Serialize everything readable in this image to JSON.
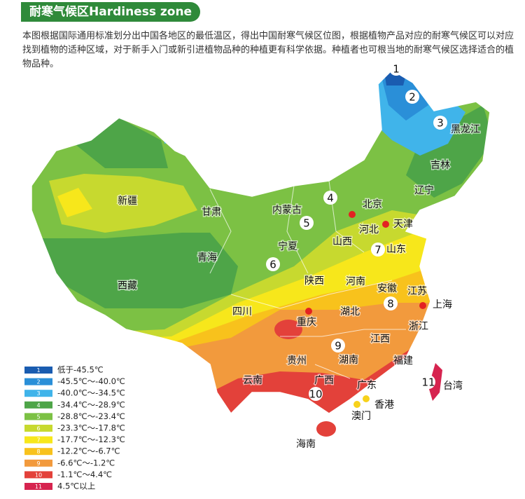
{
  "header": {
    "title": "耐寒气候区Hardiness zone"
  },
  "description": "本图根据国际通用标准划分出中国各地区的最低温区，得出中国耐寒气候区位图，根据植物产品对应的耐寒气候区可以对应找到植物的适种区域，对于新手入门或新引进植物品种的种植更有科学依据。种植者也可根当地的耐寒气候区选择适合的植物品种。",
  "legend": [
    {
      "label": "1",
      "text": "低于-45.5℃",
      "color": "#1a5cb0"
    },
    {
      "label": "2",
      "text": "-45.5℃～-40.0℃",
      "color": "#2a8fd8"
    },
    {
      "label": "3",
      "text": "-40.0℃～-34.5℃",
      "color": "#40b4ea"
    },
    {
      "label": "4",
      "text": "-34.4℃～-28.9℃",
      "color": "#4ea548"
    },
    {
      "label": "5",
      "text": "-28.8℃～-23.4℃",
      "color": "#7cc144"
    },
    {
      "label": "6",
      "text": "-23.3℃～-17.8℃",
      "color": "#c7d92f"
    },
    {
      "label": "7",
      "text": "-17.7℃～-12.3℃",
      "color": "#f7e71b"
    },
    {
      "label": "8",
      "text": "-12.2℃～-6.7℃",
      "color": "#f8c21c"
    },
    {
      "label": "9",
      "text": "-6.6℃～-1.2℃",
      "color": "#f29a3d"
    },
    {
      "label": "10",
      "text": "-1.1℃～4.4℃",
      "color": "#e3413a"
    },
    {
      "label": "11",
      "text": "4.5℃以上",
      "color": "#d6244f"
    }
  ],
  "map": {
    "regions": [
      "新疆",
      "西藏",
      "青海",
      "甘肃",
      "内蒙古",
      "宁夏",
      "四川",
      "陕西",
      "山西",
      "河北",
      "北京",
      "天津",
      "山东",
      "河南",
      "安徽",
      "江苏",
      "上海",
      "湖北",
      "重庆",
      "贵州",
      "湖南",
      "江西",
      "浙江",
      "福建",
      "云南",
      "广西",
      "广东",
      "香港",
      "澳门",
      "海南",
      "台湾",
      "黑龙江",
      "吉林",
      "辽宁"
    ],
    "zones": [
      "1",
      "2",
      "3",
      "4",
      "5",
      "6",
      "7",
      "8",
      "9",
      "10",
      "11"
    ]
  }
}
